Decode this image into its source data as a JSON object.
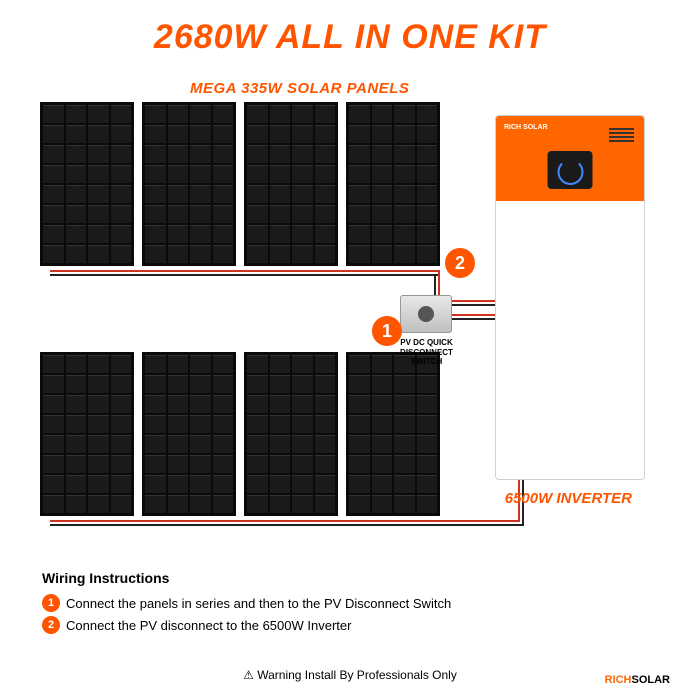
{
  "colors": {
    "accent": "#ff5500",
    "text": "#1a1a1a",
    "wire_red": "#cc3322",
    "wire_black": "#222222"
  },
  "title": "2680W ALL IN ONE KIT",
  "subtitle": "MEGA 335W SOLAR PANELS",
  "inverter_label": "6500W INVERTER",
  "inverter_brand": "RICH SOLAR",
  "switch_label": "PV DC QUICK DISCONNECT SWITCH",
  "markers": {
    "one": "1",
    "two": "2"
  },
  "instructions": {
    "heading": "Wiring Instructions",
    "step1": "Connect the panels in series and then to the PV Disconnect Switch",
    "step2": "Connect the PV disconnect to the 6500W Inverter"
  },
  "warning": "⚠ Warning Install By Professionals Only",
  "footer_brand_1": "RICH",
  "footer_brand_2": "SOLAR",
  "panel_config": {
    "rows_per_group": 2,
    "panels_per_row": 4,
    "cells_rows": 8,
    "cells_cols": 4
  }
}
